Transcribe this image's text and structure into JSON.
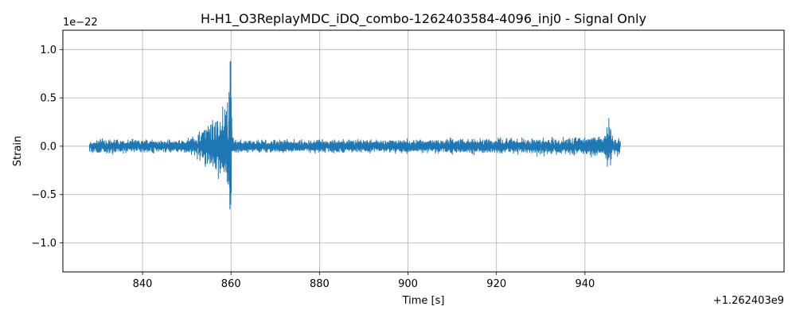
{
  "chart_data": {
    "type": "line",
    "title": "H-H1_O3ReplayMDC_iDQ_combo-1262403584-4096_inj0 - Signal Only",
    "xlabel": "Time [s]",
    "ylabel": "Strain",
    "x_offset_label": "+1.262403e9",
    "y_scale_label": "1e−22",
    "xlim": [
      822,
      985
    ],
    "ylim": [
      -1.3,
      1.2
    ],
    "x_ticks": [
      840,
      860,
      880,
      900,
      920,
      940
    ],
    "x_tick_labels": [
      "840",
      "860",
      "880",
      "900",
      "920",
      "940"
    ],
    "y_ticks": [
      -1.0,
      -0.5,
      0.0,
      0.5,
      1.0
    ],
    "y_tick_labels": [
      "−1.0",
      "−0.5",
      "0.0",
      "0.5",
      "1.0"
    ],
    "grid": true,
    "series": [
      {
        "color": "#1f77b4",
        "x_range": [
          828,
          948
        ],
        "envelope": {
          "x": [
            828,
            845,
            850,
            852,
            854,
            856,
            857.5,
            858.5,
            859.3,
            859.8,
            860.0,
            860.3,
            862,
            880,
            900,
            920,
            935,
            940,
            944,
            945.6,
            946.2,
            948
          ],
          "amplitude": [
            0.09,
            0.08,
            0.09,
            0.14,
            0.24,
            0.33,
            0.42,
            0.52,
            0.65,
            1.05,
            1.18,
            0.13,
            0.08,
            0.085,
            0.09,
            0.1,
            0.11,
            0.12,
            0.14,
            0.34,
            0.13,
            0.11
          ]
        }
      }
    ]
  }
}
